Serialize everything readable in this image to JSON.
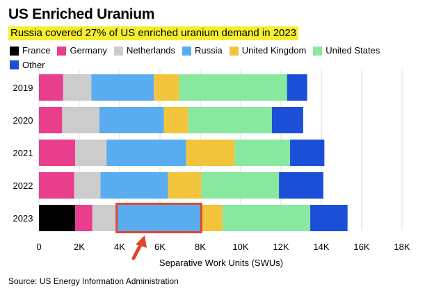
{
  "chart_data": {
    "type": "stacked-bar-horizontal",
    "title": "US Enriched Uranium",
    "subtitle": "Russia covered 27% of US enriched uranium demand in 2023",
    "xlabel": "Separative Work Units (SWUs)",
    "ylabel": "",
    "xlim": [
      0,
      18000
    ],
    "xticks": [
      0,
      2000,
      4000,
      6000,
      8000,
      10000,
      12000,
      14000,
      16000,
      18000
    ],
    "xtick_labels": [
      "0",
      "2K",
      "4K",
      "6K",
      "8K",
      "10K",
      "12K",
      "14K",
      "16K",
      "18K"
    ],
    "grid": true,
    "categories": [
      "2019",
      "2020",
      "2021",
      "2022",
      "2023"
    ],
    "series": [
      {
        "name": "France",
        "color": "#000000",
        "values": [
          0,
          0,
          0,
          0,
          1800
        ]
      },
      {
        "name": "Germany",
        "color": "#e83e8c",
        "values": [
          1200,
          1150,
          1800,
          1750,
          850
        ]
      },
      {
        "name": "Netherlands",
        "color": "#cccccc",
        "values": [
          1400,
          1850,
          1550,
          1300,
          1150
        ]
      },
      {
        "name": "Russia",
        "color": "#5aacf0",
        "values": [
          3100,
          3200,
          3950,
          3350,
          4300
        ]
      },
      {
        "name": "United Kingdom",
        "color": "#f2c43c",
        "values": [
          1250,
          1200,
          2400,
          1650,
          1000
        ]
      },
      {
        "name": "United States",
        "color": "#89e8a0",
        "values": [
          5350,
          4150,
          2750,
          3850,
          4350
        ]
      },
      {
        "name": "Other",
        "color": "#1c4fd8",
        "values": [
          1000,
          1550,
          1700,
          2200,
          1850
        ]
      }
    ],
    "annotation": {
      "target_year": "2023",
      "target_series": "Russia",
      "highlight_color": "#e4452c"
    }
  },
  "source": "Source: US Energy Information Administration"
}
